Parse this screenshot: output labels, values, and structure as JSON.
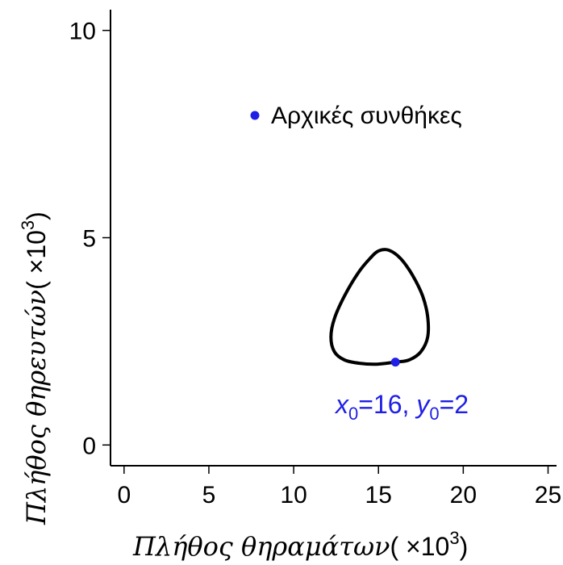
{
  "chart_data": {
    "type": "line",
    "title": "",
    "xlabel": "Πλήθος θηραμάτων",
    "xlabel_unit": "( ×10",
    "xlabel_exp": "3",
    "xlabel_close": ")",
    "ylabel": "Πλήθος θηρευτών",
    "ylabel_unit": "( ×10",
    "ylabel_exp": "3",
    "ylabel_close": ")",
    "xlim": [
      -0.8,
      25.5
    ],
    "ylim": [
      -0.5,
      10.5
    ],
    "x_ticks": [
      0,
      5,
      10,
      15,
      20,
      25
    ],
    "x_tick_labels": [
      "0",
      "5",
      "10",
      "15",
      "20",
      "25"
    ],
    "y_ticks": [
      0,
      5,
      10
    ],
    "y_tick_labels": [
      "0",
      "5",
      "10"
    ],
    "grid": false,
    "series": [
      {
        "values_desc": "closed predator-prey orbit",
        "color": "#000000",
        "x": [
          16.0,
          16.8,
          17.5,
          17.9,
          17.9,
          17.6,
          17.0,
          16.3,
          15.6,
          15.0,
          14.5,
          13.8,
          13.0,
          12.4,
          12.2,
          12.4,
          13.0,
          13.9,
          14.9,
          16.0
        ],
        "y": [
          2.0,
          2.05,
          2.25,
          2.6,
          3.1,
          3.6,
          4.1,
          4.5,
          4.7,
          4.68,
          4.5,
          4.15,
          3.6,
          3.05,
          2.6,
          2.25,
          2.05,
          1.97,
          1.95,
          2.0
        ]
      }
    ],
    "initial_point": {
      "x": 16,
      "y": 2,
      "color": "#1f1fe6"
    },
    "legend": {
      "label": "Αρχικές συνθήκες",
      "placement": "top-right",
      "marker_color": "#1f1fe6"
    },
    "annotation": {
      "x_sym": "x",
      "x_sub": "0",
      "x_val": "=16, ",
      "y_sym": "y",
      "y_sub": "0",
      "y_val": "=2"
    }
  }
}
